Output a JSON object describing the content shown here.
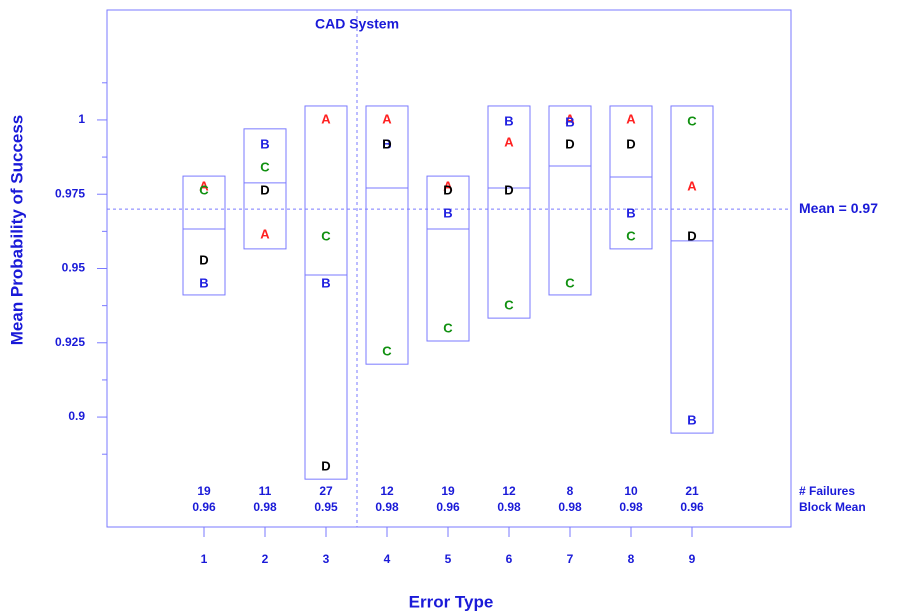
{
  "chart_data": {
    "type": "block",
    "title": "CAD System",
    "xlabel": "Error Type",
    "ylabel": "Mean Probability of Success",
    "categories": [
      "1",
      "2",
      "3",
      "4",
      "5",
      "6",
      "7",
      "8",
      "9"
    ],
    "series": [
      {
        "name": "A",
        "color": "#ff2020",
        "values": [
          0.9774,
          0.9613,
          1.0,
          1.0,
          0.9774,
          0.9923,
          1.0,
          1.0,
          0.9774
        ]
      },
      {
        "name": "B",
        "color": "#2020e0",
        "values": [
          0.9448,
          0.9916,
          0.9448,
          0.9916,
          0.9684,
          0.9993,
          0.999,
          0.9684,
          0.8987
        ]
      },
      {
        "name": "C",
        "color": "#109010",
        "values": [
          0.9761,
          0.9838,
          0.9606,
          0.9219,
          0.9296,
          0.9374,
          0.9448,
          0.9606,
          0.9993
        ]
      },
      {
        "name": "D",
        "color": "#000000",
        "values": [
          0.9525,
          0.9761,
          0.8832,
          0.9916,
          0.9761,
          0.9761,
          0.9916,
          0.9916,
          0.9606
        ]
      }
    ],
    "high": [
      0.9811,
      0.997,
      1.0047,
      1.0047,
      0.9811,
      1.0047,
      1.0047,
      1.0047,
      1.0047
    ],
    "low": [
      0.9411,
      0.9566,
      0.8791,
      0.9178,
      0.9256,
      0.9333,
      0.9411,
      0.9566,
      0.8946
    ],
    "means": [
      0.9633,
      0.9788,
      0.9478,
      0.9771,
      0.9633,
      0.9771,
      0.9845,
      0.9808,
      0.9593
    ],
    "grand_mean": {
      "value": 0.97,
      "label": "Mean = 0.97"
    },
    "failures_label": "# Failures",
    "failures": [
      19,
      11,
      27,
      12,
      19,
      12,
      8,
      10,
      21
    ],
    "block_means_label": "Block Mean",
    "block_means": [
      0.96,
      0.98,
      0.95,
      0.98,
      0.96,
      0.98,
      0.98,
      0.98,
      0.96
    ],
    "ylim": [
      0.863,
      1.037
    ],
    "yticks": [
      0.9,
      0.925,
      0.95,
      0.975,
      1
    ]
  }
}
